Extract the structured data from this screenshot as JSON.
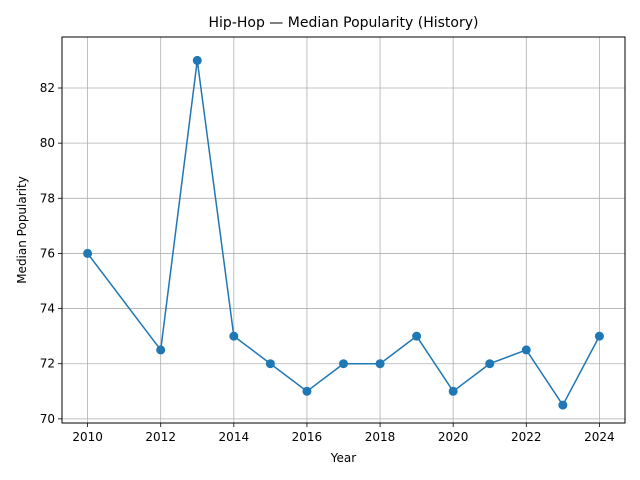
{
  "chart_data": {
    "type": "line",
    "title": "Hip-Hop — Median Popularity (History)",
    "xlabel": "Year",
    "ylabel": "Median Popularity",
    "xlim": [
      2009.3,
      2024.7
    ],
    "ylim": [
      69.85,
      83.85
    ],
    "x_ticks": [
      2010,
      2012,
      2014,
      2016,
      2018,
      2020,
      2022,
      2024
    ],
    "y_ticks": [
      70,
      72,
      74,
      76,
      78,
      80,
      82
    ],
    "grid": true,
    "legend": "none",
    "series": [
      {
        "color": "#1f77b4",
        "marker": "circle",
        "x": [
          2010,
          2012,
          2013,
          2014,
          2015,
          2016,
          2017,
          2018,
          2019,
          2020,
          2021,
          2022,
          2023,
          2024
        ],
        "y": [
          76,
          72.5,
          83,
          73,
          72,
          71,
          72,
          72,
          73,
          71,
          72,
          72.5,
          70.5,
          73
        ]
      }
    ]
  }
}
